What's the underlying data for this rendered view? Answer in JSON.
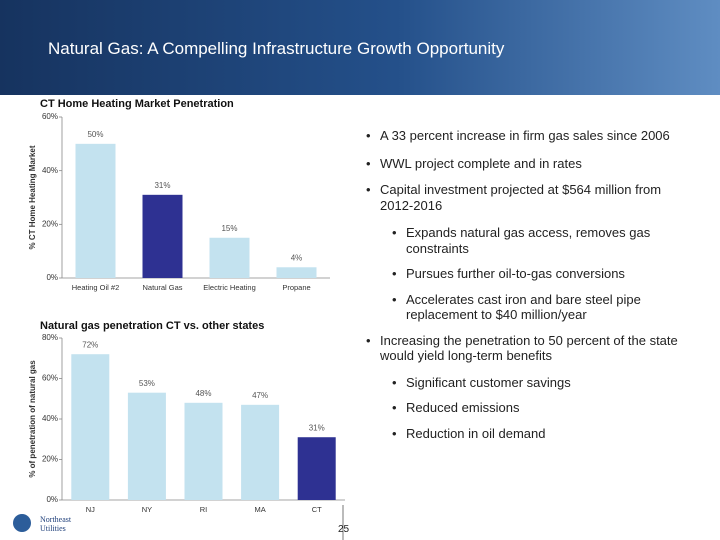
{
  "title": "Natural Gas:  A Compelling Infrastructure  Growth Opportunity",
  "chart_data": [
    {
      "type": "bar",
      "title": "CT Home Heating Market Penetration",
      "y_label": "% CT Home Heating Market",
      "categories": [
        "Heating Oil #2",
        "Natural Gas",
        "Electric Heating",
        "Propane"
      ],
      "values": [
        50,
        31,
        15,
        4
      ],
      "value_labels": [
        "50%",
        "31%",
        "15%",
        "4%"
      ],
      "colors": [
        "#c3e2ef",
        "#2e3192",
        "#c3e2ef",
        "#c3e2ef"
      ],
      "ylim": [
        0,
        60
      ],
      "yticks": [
        {
          "value": 0,
          "label": "0%"
        },
        {
          "value": 20,
          "label": "20%"
        },
        {
          "value": 40,
          "label": "40%"
        },
        {
          "value": 60,
          "label": "60%"
        }
      ],
      "grid": false
    },
    {
      "type": "bar",
      "title": "Natural gas penetration CT vs. other states",
      "y_label": "% of penetration of natural gas",
      "categories": [
        "NJ",
        "NY",
        "RI",
        "MA",
        "CT"
      ],
      "values": [
        72,
        53,
        48,
        47,
        31
      ],
      "value_labels": [
        "72%",
        "53%",
        "48%",
        "47%",
        "31%"
      ],
      "colors": [
        "#c3e2ef",
        "#c3e2ef",
        "#c3e2ef",
        "#c3e2ef",
        "#2e3192"
      ],
      "ylim": [
        0,
        80
      ],
      "yticks": [
        {
          "value": 0,
          "label": "0%"
        },
        {
          "value": 20,
          "label": "20%"
        },
        {
          "value": 40,
          "label": "40%"
        },
        {
          "value": 60,
          "label": "60%"
        },
        {
          "value": 80,
          "label": "80%"
        }
      ],
      "grid": false
    }
  ],
  "bullets": [
    {
      "level": 1,
      "text": "A 33 percent increase in firm gas sales since 2006"
    },
    {
      "level": 1,
      "text": "WWL project complete and in rates"
    },
    {
      "level": 1,
      "text": "Capital investment projected at $564 million from 2012-2016"
    },
    {
      "level": 2,
      "text": "Expands natural gas access, removes gas constraints"
    },
    {
      "level": 2,
      "text": "Pursues further oil-to-gas conversions"
    },
    {
      "level": 2,
      "text": "Accelerates cast iron and bare steel pipe replacement to $40 million/year"
    },
    {
      "level": 1,
      "text": "Increasing the penetration to 50 percent of the state would yield long-term benefits"
    },
    {
      "level": 2,
      "text": "Significant customer savings"
    },
    {
      "level": 2,
      "text": "Reduced emissions"
    },
    {
      "level": 2,
      "text": "Reduction in oil demand"
    }
  ],
  "logo": "Northeast Utilities",
  "page_number": "25"
}
